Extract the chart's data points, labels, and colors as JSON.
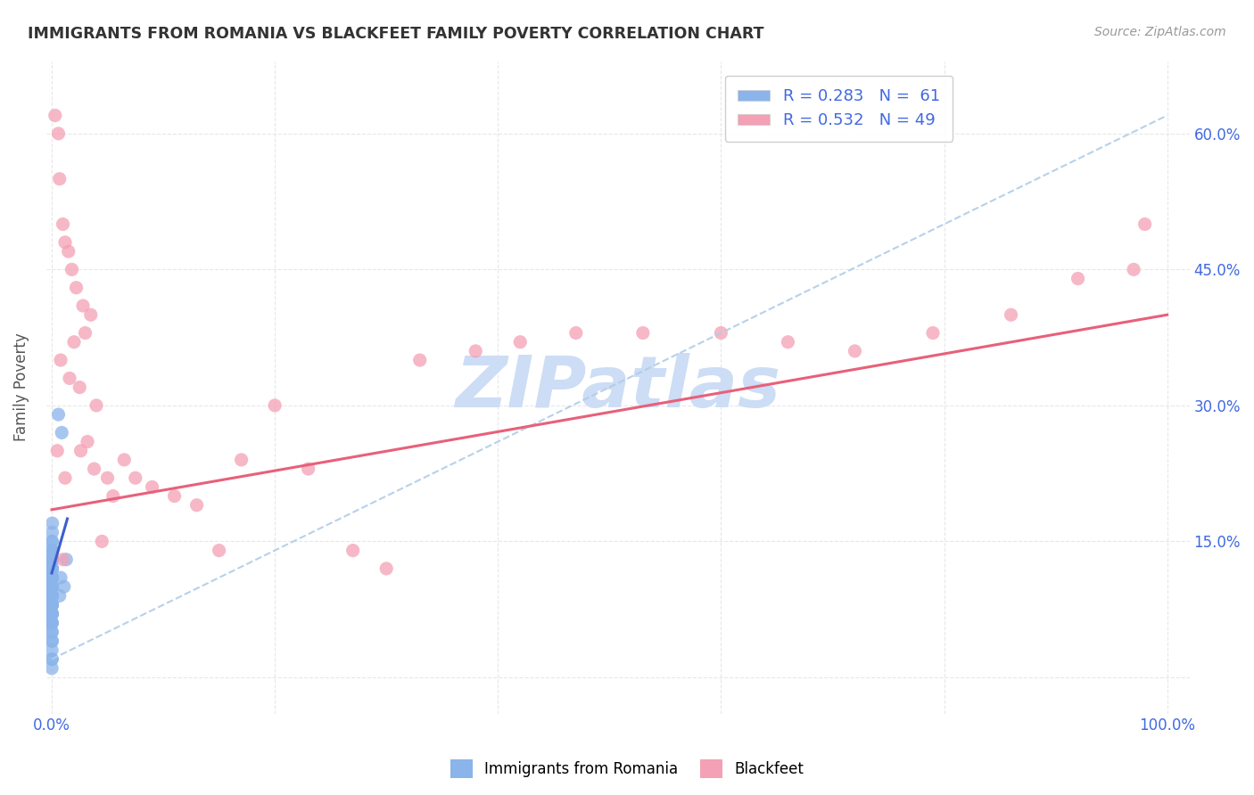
{
  "title": "IMMIGRANTS FROM ROMANIA VS BLACKFEET FAMILY POVERTY CORRELATION CHART",
  "source": "Source: ZipAtlas.com",
  "ylabel": "Family Poverty",
  "legend_label1": "R = 0.283   N =  61",
  "legend_label2": "R = 0.532   N = 49",
  "romania_color": "#8ab4ea",
  "blackfeet_color": "#f4a0b5",
  "romania_line_color": "#3a5fcd",
  "blackfeet_line_color": "#e8607a",
  "dashed_line_color": "#b0cce8",
  "watermark": "ZIPatlas",
  "watermark_color": "#ccddf5",
  "xlim": [
    -0.005,
    1.02
  ],
  "ylim": [
    -0.04,
    0.68
  ],
  "background_color": "#ffffff",
  "grid_color": "#dddddd",
  "romania_scatter_x": [
    0.0002,
    0.0003,
    0.0001,
    0.0005,
    0.0004,
    0.0002,
    0.0003,
    0.0001,
    0.0006,
    0.0002,
    0.0004,
    0.0001,
    0.0003,
    0.0002,
    0.0005,
    0.0001,
    0.0003,
    0.0002,
    0.0004,
    0.0001,
    0.0003,
    0.0002,
    0.0001,
    0.0004,
    0.0003,
    0.0002,
    0.0001,
    0.0005,
    0.0003,
    0.0002,
    0.0001,
    0.0004,
    0.0002,
    0.0003,
    0.0001,
    0.0005,
    0.0002,
    0.0001,
    0.0003,
    0.0002,
    0.0001,
    0.0004,
    0.0002,
    0.0001,
    0.0003,
    0.0001,
    0.0002,
    0.0004,
    0.0001,
    0.0003,
    0.0002,
    0.0001,
    0.0004,
    0.0001,
    0.0002,
    0.006,
    0.009,
    0.011,
    0.013,
    0.008,
    0.007
  ],
  "romania_scatter_y": [
    0.05,
    0.08,
    0.1,
    0.12,
    0.07,
    0.09,
    0.11,
    0.04,
    0.13,
    0.06,
    0.15,
    0.08,
    0.07,
    0.1,
    0.14,
    0.05,
    0.09,
    0.12,
    0.13,
    0.06,
    0.08,
    0.11,
    0.07,
    0.16,
    0.09,
    0.1,
    0.13,
    0.17,
    0.08,
    0.12,
    0.06,
    0.14,
    0.09,
    0.11,
    0.1,
    0.13,
    0.07,
    0.15,
    0.08,
    0.12,
    0.09,
    0.11,
    0.06,
    0.14,
    0.08,
    0.1,
    0.07,
    0.13,
    0.09,
    0.11,
    0.02,
    0.03,
    0.04,
    0.01,
    0.02,
    0.29,
    0.27,
    0.1,
    0.13,
    0.11,
    0.09
  ],
  "blackfeet_scatter_x": [
    0.003,
    0.007,
    0.01,
    0.015,
    0.018,
    0.022,
    0.028,
    0.035,
    0.012,
    0.02,
    0.008,
    0.025,
    0.03,
    0.005,
    0.016,
    0.04,
    0.012,
    0.026,
    0.045,
    0.006,
    0.032,
    0.038,
    0.05,
    0.055,
    0.065,
    0.075,
    0.09,
    0.11,
    0.13,
    0.15,
    0.17,
    0.2,
    0.23,
    0.27,
    0.3,
    0.33,
    0.38,
    0.42,
    0.47,
    0.53,
    0.6,
    0.66,
    0.72,
    0.79,
    0.86,
    0.92,
    0.97,
    0.98,
    0.01
  ],
  "blackfeet_scatter_y": [
    0.62,
    0.55,
    0.5,
    0.47,
    0.45,
    0.43,
    0.41,
    0.4,
    0.48,
    0.37,
    0.35,
    0.32,
    0.38,
    0.25,
    0.33,
    0.3,
    0.22,
    0.25,
    0.15,
    0.6,
    0.26,
    0.23,
    0.22,
    0.2,
    0.24,
    0.22,
    0.21,
    0.2,
    0.19,
    0.14,
    0.24,
    0.3,
    0.23,
    0.14,
    0.12,
    0.35,
    0.36,
    0.37,
    0.38,
    0.38,
    0.38,
    0.37,
    0.36,
    0.38,
    0.4,
    0.44,
    0.45,
    0.5,
    0.13
  ],
  "romania_line_x": [
    0.0,
    0.014
  ],
  "romania_line_y_start": 0.115,
  "romania_line_y_end": 0.175,
  "blackfeet_line_x": [
    0.0,
    1.0
  ],
  "blackfeet_line_y_start": 0.185,
  "blackfeet_line_y_end": 0.4,
  "dashed_line_x": [
    0.0,
    1.0
  ],
  "dashed_line_y_start": 0.02,
  "dashed_line_y_end": 0.62
}
